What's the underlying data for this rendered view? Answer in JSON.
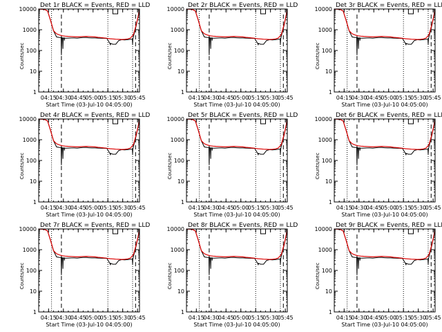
{
  "chart_data": [
    {
      "type": "line",
      "title": "Det 1r BLACK = Events, RED = LLD",
      "xlabel": "Start Time (03-Jul-10 04:05:00)",
      "ylabel": "Counts/sec",
      "x_tick_labels": [
        "04:15",
        "04:30",
        "04:45",
        "05:00",
        "05:15",
        "05:30",
        "05:45"
      ],
      "y_tick_labels": [
        "1",
        "10",
        "100",
        "1000",
        "10000"
      ],
      "ylim": [
        1,
        10000
      ],
      "y_scale": "log",
      "series": [
        {
          "name": "Events",
          "color": "#000000"
        },
        {
          "name": "LLD",
          "color": "#dd0000"
        }
      ]
    },
    {
      "type": "line",
      "title": "Det 2r BLACK = Events, RED = LLD",
      "xlabel": "Start Time (03-Jul-10 04:05:00)",
      "ylabel": "Counts/sec",
      "x_tick_labels": [
        "04:15",
        "04:30",
        "04:45",
        "05:00",
        "05:15",
        "05:30",
        "05:45"
      ],
      "y_tick_labels": [
        "1",
        "10",
        "100",
        "1000",
        "10000"
      ],
      "ylim": [
        1,
        10000
      ],
      "y_scale": "log",
      "series": [
        {
          "name": "Events",
          "color": "#000000"
        },
        {
          "name": "LLD",
          "color": "#dd0000"
        }
      ]
    },
    {
      "type": "line",
      "title": "Det 3r BLACK = Events, RED = LLD",
      "xlabel": "Start Time (03-Jul-10 04:05:00)",
      "ylabel": "Counts/sec",
      "x_tick_labels": [
        "04:15",
        "04:30",
        "04:45",
        "05:00",
        "05:15",
        "05:30",
        "05:45"
      ],
      "y_tick_labels": [
        "1",
        "10",
        "100",
        "1000",
        "10000"
      ],
      "ylim": [
        1,
        10000
      ],
      "y_scale": "log",
      "series": [
        {
          "name": "Events",
          "color": "#000000"
        },
        {
          "name": "LLD",
          "color": "#dd0000"
        }
      ]
    },
    {
      "type": "line",
      "title": "Det 4r BLACK = Events, RED = LLD",
      "xlabel": "Start Time (03-Jul-10 04:05:00)",
      "ylabel": "Counts/sec",
      "x_tick_labels": [
        "04:15",
        "04:30",
        "04:45",
        "05:00",
        "05:15",
        "05:30",
        "05:45"
      ],
      "y_tick_labels": [
        "1",
        "10",
        "100",
        "1000",
        "10000"
      ],
      "ylim": [
        1,
        10000
      ],
      "y_scale": "log",
      "series": [
        {
          "name": "Events",
          "color": "#000000"
        },
        {
          "name": "LLD",
          "color": "#dd0000"
        }
      ]
    },
    {
      "type": "line",
      "title": "Det 5r BLACK = Events, RED = LLD",
      "xlabel": "Start Time (03-Jul-10 04:05:00)",
      "ylabel": "Counts/sec",
      "x_tick_labels": [
        "04:15",
        "04:30",
        "04:45",
        "05:00",
        "05:15",
        "05:30",
        "05:45"
      ],
      "y_tick_labels": [
        "1",
        "10",
        "100",
        "1000",
        "10000"
      ],
      "ylim": [
        1,
        10000
      ],
      "y_scale": "log",
      "series": [
        {
          "name": "Events",
          "color": "#000000"
        },
        {
          "name": "LLD",
          "color": "#dd0000"
        }
      ]
    },
    {
      "type": "line",
      "title": "Det 6r BLACK = Events, RED = LLD",
      "xlabel": "Start Time (03-Jul-10 04:05:00)",
      "ylabel": "Counts/sec",
      "x_tick_labels": [
        "04:15",
        "04:30",
        "04:45",
        "05:00",
        "05:15",
        "05:30",
        "05:45"
      ],
      "y_tick_labels": [
        "1",
        "10",
        "100",
        "1000",
        "10000"
      ],
      "ylim": [
        1,
        10000
      ],
      "y_scale": "log",
      "series": [
        {
          "name": "Events",
          "color": "#000000"
        },
        {
          "name": "LLD",
          "color": "#dd0000"
        }
      ]
    },
    {
      "type": "line",
      "title": "Det 7r BLACK = Events, RED = LLD",
      "xlabel": "Start Time (03-Jul-10 04:05:00)",
      "ylabel": "Counts/sec",
      "x_tick_labels": [
        "04:15",
        "04:30",
        "04:45",
        "05:00",
        "05:15",
        "05:30",
        "05:45"
      ],
      "y_tick_labels": [
        "1",
        "10",
        "100",
        "1000",
        "10000"
      ],
      "ylim": [
        1,
        10000
      ],
      "y_scale": "log",
      "series": [
        {
          "name": "Events",
          "color": "#000000"
        },
        {
          "name": "LLD",
          "color": "#dd0000"
        }
      ]
    },
    {
      "type": "line",
      "title": "Det 8r BLACK = Events, RED = LLD",
      "xlabel": "Start Time (03-Jul-10 04:05:00)",
      "ylabel": "Counts/sec",
      "x_tick_labels": [
        "04:15",
        "04:30",
        "04:45",
        "05:00",
        "05:15",
        "05:30",
        "05:45"
      ],
      "y_tick_labels": [
        "1",
        "10",
        "100",
        "1000",
        "10000"
      ],
      "ylim": [
        1,
        10000
      ],
      "y_scale": "log",
      "series": [
        {
          "name": "Events",
          "color": "#000000"
        },
        {
          "name": "LLD",
          "color": "#dd0000"
        }
      ]
    },
    {
      "type": "line",
      "title": "Det 9r BLACK = Events, RED = LLD",
      "xlabel": "Start Time (03-Jul-10 04:05:00)",
      "ylabel": "Counts/sec",
      "x_tick_labels": [
        "04:15",
        "04:30",
        "04:45",
        "05:00",
        "05:15",
        "05:30",
        "05:45"
      ],
      "y_tick_labels": [
        "1",
        "10",
        "100",
        "1000",
        "10000"
      ],
      "ylim": [
        1,
        10000
      ],
      "y_scale": "log",
      "series": [
        {
          "name": "Events",
          "color": "#000000"
        },
        {
          "name": "LLD",
          "color": "#dd0000"
        }
      ]
    }
  ],
  "shared": {
    "x_minutes_from_start": [
      0,
      3,
      6,
      9,
      12,
      15,
      18,
      21,
      24,
      27,
      30,
      33,
      36,
      39,
      42,
      45,
      48,
      51,
      54,
      57,
      60,
      63,
      66,
      69,
      72,
      75,
      78,
      81,
      84,
      87,
      90,
      93,
      96,
      99,
      102
    ],
    "x_range_minutes": [
      0,
      102
    ],
    "x_tick_minutes": [
      10,
      25,
      40,
      55,
      70,
      85,
      100
    ],
    "lld_counts": [
      10000,
      9800,
      9500,
      8000,
      2800,
      900,
      640,
      560,
      510,
      490,
      480,
      470,
      460,
      450,
      460,
      470,
      480,
      470,
      460,
      450,
      430,
      420,
      400,
      390,
      370,
      360,
      350,
      345,
      340,
      345,
      360,
      400,
      600,
      2000,
      9000
    ],
    "event_counts": [
      10000,
      9800,
      9500,
      8000,
      2800,
      900,
      450,
      420,
      400,
      390,
      395,
      400,
      400,
      390,
      410,
      420,
      420,
      410,
      400,
      400,
      395,
      390,
      385,
      380,
      220,
      200,
      200,
      300,
      330,
      320,
      330,
      350,
      500,
      1800,
      8500
    ],
    "event_dips": [
      [
        23,
        60
      ],
      [
        24.5,
        120
      ],
      [
        26,
        300
      ],
      [
        72.5,
        180
      ],
      [
        95,
        200
      ]
    ],
    "saa_dotted_minutes": [
      13,
      70,
      95
    ],
    "saa_dashed_minutes": [
      23,
      98
    ],
    "corner_box_minutes": [
      75,
      80
    ]
  }
}
